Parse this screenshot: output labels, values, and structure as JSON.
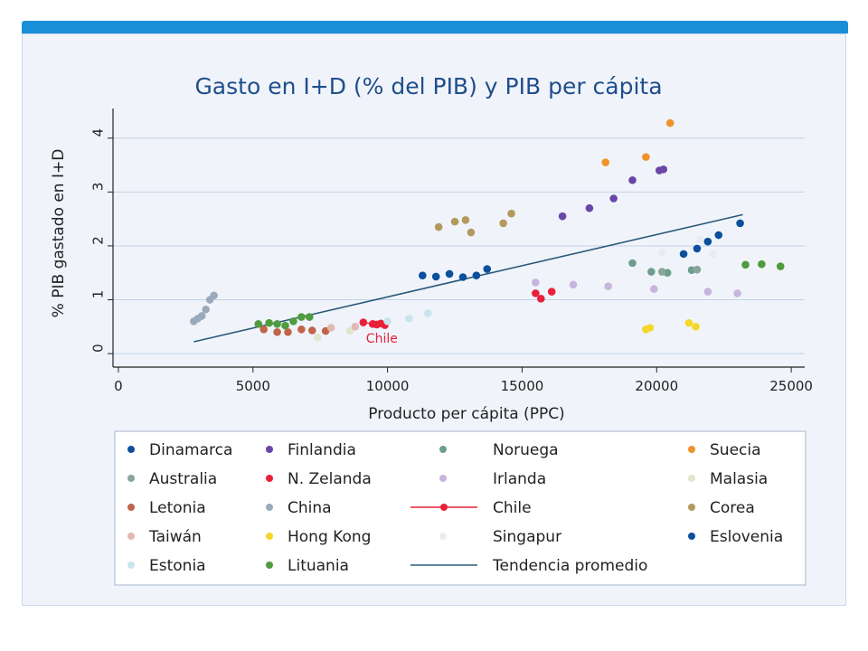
{
  "chart_data": {
    "type": "scatter",
    "title": "Gasto en I+D (% del PIB) y PIB per cápita",
    "xlabel": "Producto per cápita (PPC)",
    "ylabel": "% PIB gastado en I+D",
    "xlim": [
      -200,
      25500
    ],
    "ylim": [
      -0.25,
      4.55
    ],
    "xticks": [
      0,
      5000,
      10000,
      15000,
      20000,
      25000
    ],
    "xtick_labels": [
      "0",
      "5000",
      "10000",
      "15000",
      "20000",
      "25000"
    ],
    "yticks": [
      0,
      1,
      2,
      3,
      4
    ],
    "ytick_labels": [
      "0",
      "1",
      "2",
      "3",
      "4"
    ],
    "grid": "horizontal",
    "legend_position": "bottom",
    "annotations": [
      {
        "text": "Chile",
        "x": 9200,
        "y": 0.2
      }
    ],
    "series": [
      {
        "name": "Dinamarca",
        "color": "#0c4f9c",
        "points": [
          [
            11300,
            1.45
          ],
          [
            11800,
            1.43
          ],
          [
            12300,
            1.48
          ],
          [
            12800,
            1.42
          ],
          [
            13300,
            1.45
          ],
          [
            13700,
            1.57
          ]
        ]
      },
      {
        "name": "Finlandia",
        "color": "#6a46a8",
        "points": [
          [
            16500,
            2.55
          ],
          [
            17500,
            2.7
          ],
          [
            18400,
            2.88
          ],
          [
            19100,
            3.22
          ],
          [
            20100,
            3.4
          ],
          [
            20250,
            3.42
          ]
        ]
      },
      {
        "name": "Noruega",
        "color": "#6d9e8c",
        "points": [
          [
            19100,
            1.68
          ],
          [
            19800,
            1.52
          ],
          [
            20400,
            1.5
          ],
          [
            21300,
            1.55
          ]
        ]
      },
      {
        "name": "Suecia",
        "color": "#f0932b",
        "points": [
          [
            18100,
            3.55
          ],
          [
            19600,
            3.65
          ],
          [
            20500,
            4.28
          ]
        ]
      },
      {
        "name": "Australia",
        "color": "#8aa59a",
        "points": [
          [
            20200,
            1.52
          ],
          [
            21500,
            1.56
          ]
        ]
      },
      {
        "name": "N. Zelanda",
        "color": "#e8203a",
        "points": [
          [
            15500,
            1.12
          ],
          [
            15700,
            1.02
          ],
          [
            16100,
            1.15
          ]
        ]
      },
      {
        "name": "Irlanda",
        "color": "#c7b5dd",
        "points": [
          [
            15500,
            1.32
          ],
          [
            16900,
            1.28
          ],
          [
            18200,
            1.25
          ],
          [
            19900,
            1.2
          ],
          [
            21900,
            1.15
          ],
          [
            23000,
            1.12
          ]
        ]
      },
      {
        "name": "Malasia",
        "color": "#dfe7cc",
        "points": [
          [
            7400,
            0.3
          ],
          [
            8600,
            0.42
          ]
        ]
      },
      {
        "name": "Letonia",
        "color": "#c0654a",
        "points": [
          [
            5400,
            0.45
          ],
          [
            5900,
            0.4
          ],
          [
            6300,
            0.4
          ],
          [
            6800,
            0.45
          ],
          [
            7200,
            0.43
          ],
          [
            7700,
            0.42
          ]
        ]
      },
      {
        "name": "China",
        "color": "#9aaabd",
        "points": [
          [
            2800,
            0.6
          ],
          [
            2950,
            0.65
          ],
          [
            3100,
            0.7
          ],
          [
            3250,
            0.82
          ],
          [
            3400,
            1.0
          ],
          [
            3550,
            1.08
          ]
        ]
      },
      {
        "name": "Chile",
        "color": "#e8203a",
        "line": true,
        "points": [
          [
            9100,
            0.58
          ],
          [
            9450,
            0.55
          ],
          [
            9600,
            0.54
          ],
          [
            9750,
            0.56
          ],
          [
            9900,
            0.53
          ]
        ]
      },
      {
        "name": "Corea",
        "color": "#b39a5c",
        "points": [
          [
            11900,
            2.35
          ],
          [
            12500,
            2.45
          ],
          [
            12900,
            2.48
          ],
          [
            13100,
            2.25
          ],
          [
            14300,
            2.42
          ],
          [
            14600,
            2.6
          ]
        ]
      },
      {
        "name": "Taiwán",
        "color": "#e2b8b2",
        "points": [
          [
            7900,
            0.48
          ],
          [
            8800,
            0.5
          ]
        ]
      },
      {
        "name": "Hong Kong",
        "color": "#f5d72a",
        "points": [
          [
            19600,
            0.45
          ],
          [
            19750,
            0.48
          ],
          [
            21200,
            0.57
          ],
          [
            21450,
            0.5
          ]
        ]
      },
      {
        "name": "Singapur",
        "color": "#e8ecf2",
        "points": [
          [
            20200,
            1.88
          ],
          [
            21600,
            2.12
          ],
          [
            22100,
            1.85
          ]
        ]
      },
      {
        "name": "Eslovenia",
        "color": "#0c4f9c",
        "points": [
          [
            21000,
            1.85
          ],
          [
            21500,
            1.95
          ],
          [
            21900,
            2.08
          ],
          [
            22300,
            2.2
          ],
          [
            23100,
            2.42
          ]
        ]
      },
      {
        "name": "Estonia",
        "color": "#c9e4ec",
        "points": [
          [
            10000,
            0.6
          ],
          [
            10800,
            0.65
          ],
          [
            11500,
            0.75
          ]
        ]
      },
      {
        "name": "Lituania",
        "color": "#4f9c3e",
        "points": [
          [
            5200,
            0.55
          ],
          [
            5600,
            0.57
          ],
          [
            5900,
            0.55
          ],
          [
            6200,
            0.52
          ],
          [
            6500,
            0.6
          ],
          [
            6800,
            0.68
          ],
          [
            7100,
            0.68
          ],
          [
            23300,
            1.65
          ],
          [
            23900,
            1.66
          ],
          [
            24600,
            1.62
          ]
        ]
      }
    ],
    "trend": {
      "name": "Tendencia promedio",
      "color": "#2a5a7a",
      "x": [
        2800,
        23200
      ],
      "y": [
        0.22,
        2.58
      ]
    }
  }
}
